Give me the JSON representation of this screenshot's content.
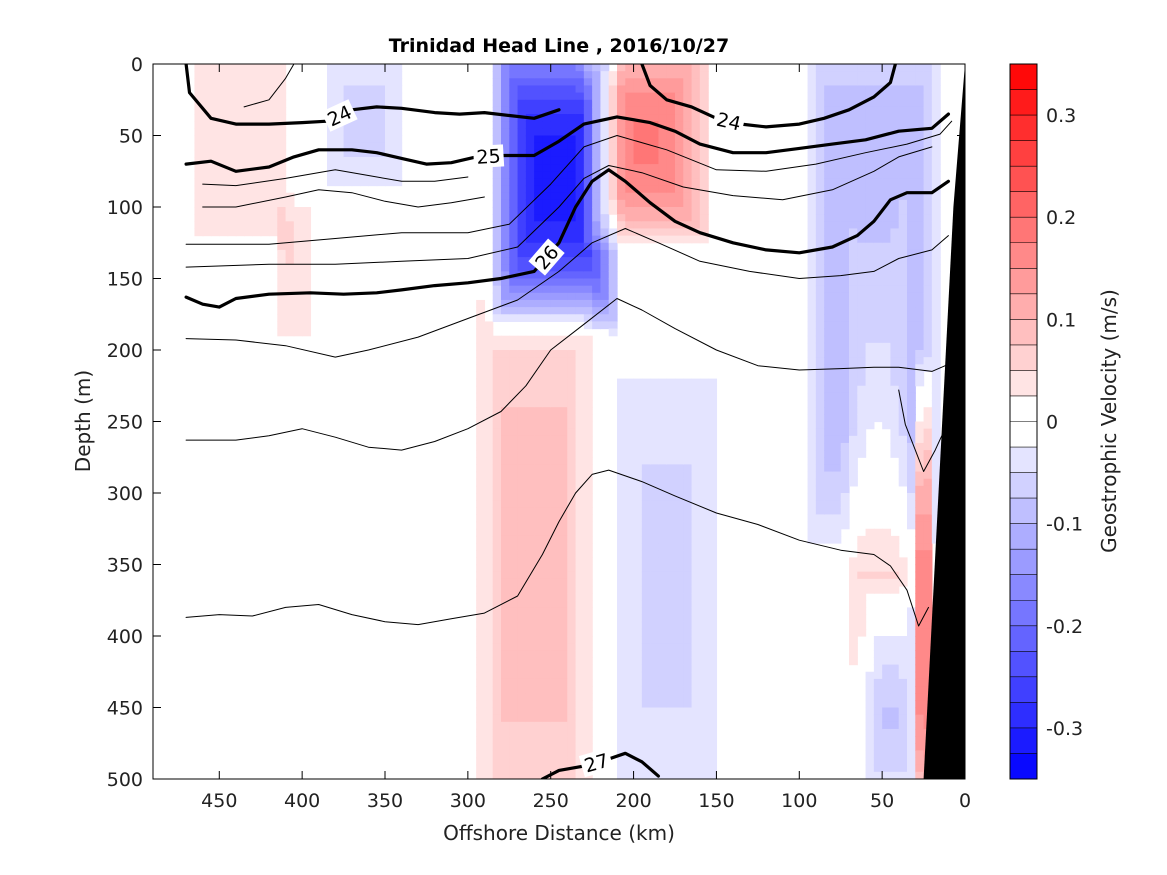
{
  "chart_data": {
    "type": "heatmap",
    "title": "Trinidad Head Line , 2016/10/27",
    "xlabel": "Offshore Distance (km)",
    "ylabel": "Depth (m)",
    "colorbar_label": "Geostrophic Velocity (m/s)",
    "xlim": [
      490,
      0
    ],
    "ylim": [
      0,
      500
    ],
    "x_reversed": true,
    "y_reversed": true,
    "x_ticks": [
      450,
      400,
      350,
      300,
      250,
      200,
      150,
      100,
      50,
      0
    ],
    "y_ticks": [
      0,
      50,
      100,
      150,
      200,
      250,
      300,
      350,
      400,
      450,
      500
    ],
    "color_ticks": [
      0.3,
      0.2,
      0.1,
      0,
      -0.1,
      -0.2,
      -0.3
    ],
    "clim": [
      -0.35,
      0.35
    ],
    "color_levels": 28,
    "colormap": {
      "negative": "#0000ff",
      "zero": "#ffffff",
      "positive": "#ff0000"
    },
    "velocity_features": [
      {
        "x_range": [
          280,
          215
        ],
        "depth_range": [
          0,
          160
        ],
        "velocity": -0.32
      },
      {
        "x_range": [
          225,
          160
        ],
        "depth_range": [
          0,
          110
        ],
        "velocity": 0.18
      },
      {
        "x_range": [
          90,
          20
        ],
        "depth_range": [
          0,
          300
        ],
        "velocity": -0.12
      },
      {
        "x_range": [
          290,
          230
        ],
        "depth_range": [
          200,
          500
        ],
        "velocity": 0.1
      },
      {
        "x_range": [
          210,
          150
        ],
        "depth_range": [
          230,
          500
        ],
        "velocity": -0.06
      },
      {
        "x_range": [
          70,
          35
        ],
        "depth_range": [
          110,
          400
        ],
        "velocity": 0.07
      },
      {
        "x_range": [
          30,
          20
        ],
        "depth_range": [
          250,
          500
        ],
        "velocity": 0.2
      },
      {
        "x_range": [
          465,
          410
        ],
        "depth_range": [
          0,
          120
        ],
        "velocity": 0.05
      },
      {
        "x_range": [
          415,
          395
        ],
        "depth_range": [
          100,
          190
        ],
        "velocity": 0.05
      },
      {
        "x_range": [
          385,
          340
        ],
        "depth_range": [
          0,
          80
        ],
        "velocity": -0.06
      },
      {
        "x_range": [
          60,
          30
        ],
        "depth_range": [
          380,
          500
        ],
        "velocity": -0.08
      }
    ],
    "density_contours": [
      {
        "level": 24,
        "label": "24",
        "bold": true,
        "points": [
          [
            470,
            0
          ],
          [
            468,
            20
          ],
          [
            455,
            38
          ],
          [
            440,
            42
          ],
          [
            420,
            42
          ],
          [
            400,
            41
          ],
          [
            385,
            40
          ],
          [
            370,
            32
          ],
          [
            355,
            30
          ],
          [
            340,
            31
          ],
          [
            320,
            34
          ],
          [
            305,
            35
          ],
          [
            290,
            34
          ],
          [
            275,
            36
          ],
          [
            260,
            38
          ],
          [
            245,
            32
          ]
        ]
      },
      {
        "level": 24,
        "label": "24",
        "bold": true,
        "points": [
          [
            195,
            0
          ],
          [
            190,
            15
          ],
          [
            180,
            25
          ],
          [
            165,
            30
          ],
          [
            150,
            38
          ],
          [
            135,
            42
          ],
          [
            120,
            44
          ],
          [
            100,
            42
          ],
          [
            85,
            38
          ],
          [
            70,
            32
          ],
          [
            55,
            23
          ],
          [
            45,
            13
          ],
          [
            42,
            0
          ]
        ]
      },
      {
        "level": 25,
        "label": "25",
        "bold": true,
        "points": [
          [
            470,
            70
          ],
          [
            455,
            68
          ],
          [
            440,
            75
          ],
          [
            420,
            72
          ],
          [
            405,
            65
          ],
          [
            390,
            60
          ],
          [
            370,
            60
          ],
          [
            355,
            62
          ],
          [
            340,
            66
          ],
          [
            325,
            70
          ],
          [
            310,
            69
          ],
          [
            295,
            65
          ],
          [
            280,
            64
          ],
          [
            260,
            64
          ],
          [
            245,
            54
          ],
          [
            230,
            42
          ],
          [
            210,
            37
          ],
          [
            190,
            41
          ],
          [
            175,
            47
          ],
          [
            160,
            56
          ],
          [
            140,
            62
          ],
          [
            120,
            62
          ],
          [
            100,
            59
          ],
          [
            80,
            56
          ],
          [
            60,
            53
          ],
          [
            40,
            47
          ],
          [
            20,
            45
          ],
          [
            10,
            35
          ]
        ]
      },
      {
        "level": 26,
        "label": "26",
        "bold": true,
        "points": [
          [
            470,
            163
          ],
          [
            460,
            168
          ],
          [
            450,
            170
          ],
          [
            440,
            164
          ],
          [
            420,
            161
          ],
          [
            395,
            160
          ],
          [
            375,
            161
          ],
          [
            355,
            160
          ],
          [
            340,
            158
          ],
          [
            320,
            155
          ],
          [
            300,
            153
          ],
          [
            280,
            150
          ],
          [
            260,
            145
          ],
          [
            245,
            125
          ],
          [
            235,
            100
          ],
          [
            225,
            82
          ],
          [
            215,
            74
          ],
          [
            205,
            82
          ],
          [
            190,
            97
          ],
          [
            175,
            110
          ],
          [
            160,
            118
          ],
          [
            140,
            125
          ],
          [
            120,
            130
          ],
          [
            100,
            132
          ],
          [
            80,
            128
          ],
          [
            65,
            120
          ],
          [
            55,
            110
          ],
          [
            45,
            95
          ],
          [
            35,
            90
          ],
          [
            20,
            90
          ],
          [
            10,
            82
          ]
        ]
      },
      {
        "level": 27,
        "label": "27",
        "bold": true,
        "points": [
          [
            255,
            500
          ],
          [
            245,
            494
          ],
          [
            230,
            491
          ],
          [
            215,
            486
          ],
          [
            205,
            482
          ],
          [
            195,
            488
          ],
          [
            185,
            498
          ]
        ]
      },
      {
        "level": null,
        "bold": false,
        "points": [
          [
            470,
            126
          ],
          [
            420,
            126
          ],
          [
            380,
            122
          ],
          [
            340,
            118
          ],
          [
            300,
            118
          ],
          [
            275,
            112
          ],
          [
            250,
            84
          ],
          [
            230,
            58
          ],
          [
            210,
            50
          ],
          [
            180,
            60
          ],
          [
            150,
            74
          ],
          [
            120,
            75
          ],
          [
            90,
            70
          ],
          [
            60,
            62
          ],
          [
            35,
            56
          ],
          [
            15,
            49
          ],
          [
            8,
            40
          ]
        ]
      },
      {
        "level": null,
        "bold": false,
        "points": [
          [
            470,
            142
          ],
          [
            420,
            140
          ],
          [
            380,
            140
          ],
          [
            340,
            138
          ],
          [
            300,
            136
          ],
          [
            270,
            128
          ],
          [
            245,
            100
          ],
          [
            230,
            80
          ],
          [
            215,
            71
          ],
          [
            195,
            76
          ],
          [
            170,
            86
          ],
          [
            140,
            92
          ],
          [
            110,
            95
          ],
          [
            80,
            88
          ],
          [
            55,
            75
          ],
          [
            40,
            65
          ],
          [
            20,
            58
          ]
        ]
      },
      {
        "level": null,
        "bold": false,
        "points": [
          [
            470,
            192
          ],
          [
            440,
            193
          ],
          [
            410,
            197
          ],
          [
            380,
            205
          ],
          [
            360,
            200
          ],
          [
            330,
            191
          ],
          [
            300,
            178
          ],
          [
            270,
            165
          ],
          [
            245,
            145
          ],
          [
            225,
            125
          ],
          [
            205,
            115
          ],
          [
            185,
            125
          ],
          [
            160,
            138
          ],
          [
            130,
            145
          ],
          [
            100,
            150
          ],
          [
            75,
            148
          ],
          [
            55,
            145
          ],
          [
            40,
            136
          ],
          [
            20,
            130
          ],
          [
            10,
            120
          ]
        ]
      },
      {
        "level": null,
        "bold": false,
        "points": [
          [
            470,
            263
          ],
          [
            440,
            263
          ],
          [
            420,
            260
          ],
          [
            400,
            255
          ],
          [
            380,
            261
          ],
          [
            360,
            268
          ],
          [
            340,
            270
          ],
          [
            320,
            264
          ],
          [
            300,
            255
          ],
          [
            280,
            243
          ],
          [
            265,
            225
          ],
          [
            250,
            200
          ],
          [
            230,
            182
          ],
          [
            210,
            164
          ],
          [
            195,
            172
          ],
          [
            175,
            185
          ],
          [
            150,
            200
          ],
          [
            125,
            211
          ],
          [
            100,
            214
          ],
          [
            75,
            213
          ],
          [
            55,
            212
          ],
          [
            40,
            212
          ],
          [
            20,
            215
          ],
          [
            10,
            210
          ]
        ]
      },
      {
        "level": null,
        "bold": false,
        "points": [
          [
            470,
            387
          ],
          [
            450,
            385
          ],
          [
            430,
            386
          ],
          [
            410,
            380
          ],
          [
            390,
            378
          ],
          [
            370,
            385
          ],
          [
            350,
            390
          ],
          [
            330,
            392
          ],
          [
            310,
            388
          ],
          [
            290,
            384
          ],
          [
            270,
            372
          ],
          [
            255,
            343
          ],
          [
            245,
            320
          ],
          [
            235,
            300
          ],
          [
            225,
            287
          ],
          [
            215,
            284
          ],
          [
            195,
            292
          ],
          [
            175,
            302
          ],
          [
            150,
            314
          ],
          [
            125,
            322
          ],
          [
            100,
            333
          ],
          [
            75,
            340
          ],
          [
            55,
            343
          ],
          [
            45,
            351
          ],
          [
            35,
            368
          ],
          [
            28,
            393
          ],
          [
            22,
            380
          ]
        ]
      },
      {
        "level": null,
        "bold": false,
        "points": [
          [
            435,
            30
          ],
          [
            420,
            25
          ],
          [
            410,
            10
          ],
          [
            405,
            0
          ]
        ]
      },
      {
        "level": null,
        "bold": false,
        "points": [
          [
            460,
            100
          ],
          [
            440,
            100
          ],
          [
            410,
            93
          ],
          [
            390,
            88
          ],
          [
            370,
            90
          ],
          [
            350,
            96
          ],
          [
            330,
            100
          ],
          [
            310,
            97
          ],
          [
            290,
            93
          ]
        ]
      },
      {
        "level": null,
        "bold": false,
        "points": [
          [
            460,
            84
          ],
          [
            440,
            85
          ],
          [
            410,
            80
          ],
          [
            380,
            74
          ],
          [
            360,
            78
          ],
          [
            340,
            82
          ],
          [
            320,
            82
          ],
          [
            300,
            79
          ]
        ]
      },
      {
        "level": null,
        "bold": false,
        "points": [
          [
            40,
            228
          ],
          [
            36,
            252
          ],
          [
            30,
            270
          ],
          [
            25,
            285
          ],
          [
            18,
            270
          ],
          [
            10,
            250
          ]
        ]
      }
    ],
    "bottom_mask": [
      [
        25,
        500
      ],
      [
        7,
        100
      ],
      [
        0,
        0
      ],
      [
        0,
        500
      ]
    ]
  }
}
